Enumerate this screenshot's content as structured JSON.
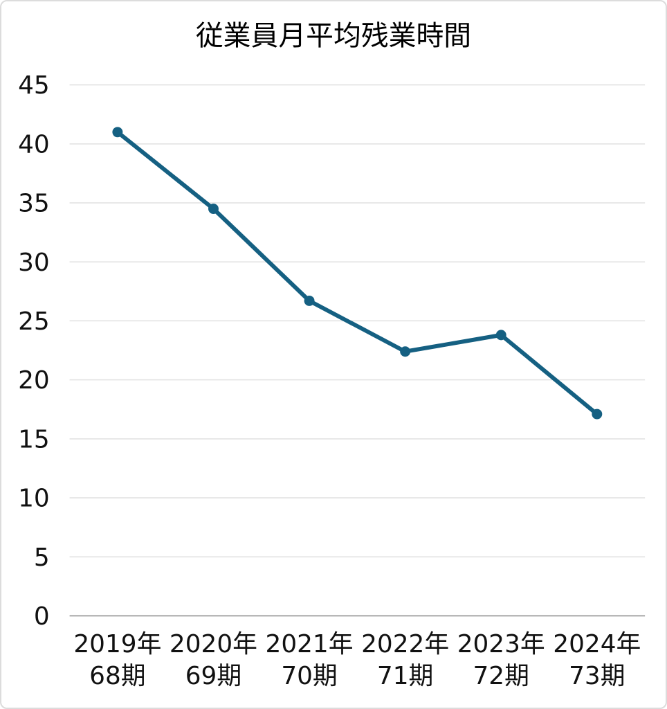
{
  "chart_data": {
    "type": "line",
    "title": "従業員月平均残業時間",
    "categories": [
      {
        "line1": "2019年",
        "line2": "68期"
      },
      {
        "line1": "2020年",
        "line2": "69期"
      },
      {
        "line1": "2021年",
        "line2": "70期"
      },
      {
        "line1": "2022年",
        "line2": "71期"
      },
      {
        "line1": "2023年",
        "line2": "72期"
      },
      {
        "line1": "2024年",
        "line2": "73期"
      }
    ],
    "values": [
      41.0,
      34.5,
      26.7,
      22.4,
      23.8,
      17.1
    ],
    "xlabel": "",
    "ylabel": "",
    "ylim": [
      0,
      45
    ],
    "yticks": [
      0,
      5,
      10,
      15,
      20,
      25,
      30,
      35,
      40,
      45
    ],
    "grid": true,
    "legend_position": "none",
    "colors": {
      "line": "#156082",
      "marker": "#156082",
      "gridline": "#e0e0e0",
      "axis_line": "#a6a6a6",
      "text": "#111111",
      "background": "#ffffff",
      "card_border": "#dcdcdc"
    }
  }
}
